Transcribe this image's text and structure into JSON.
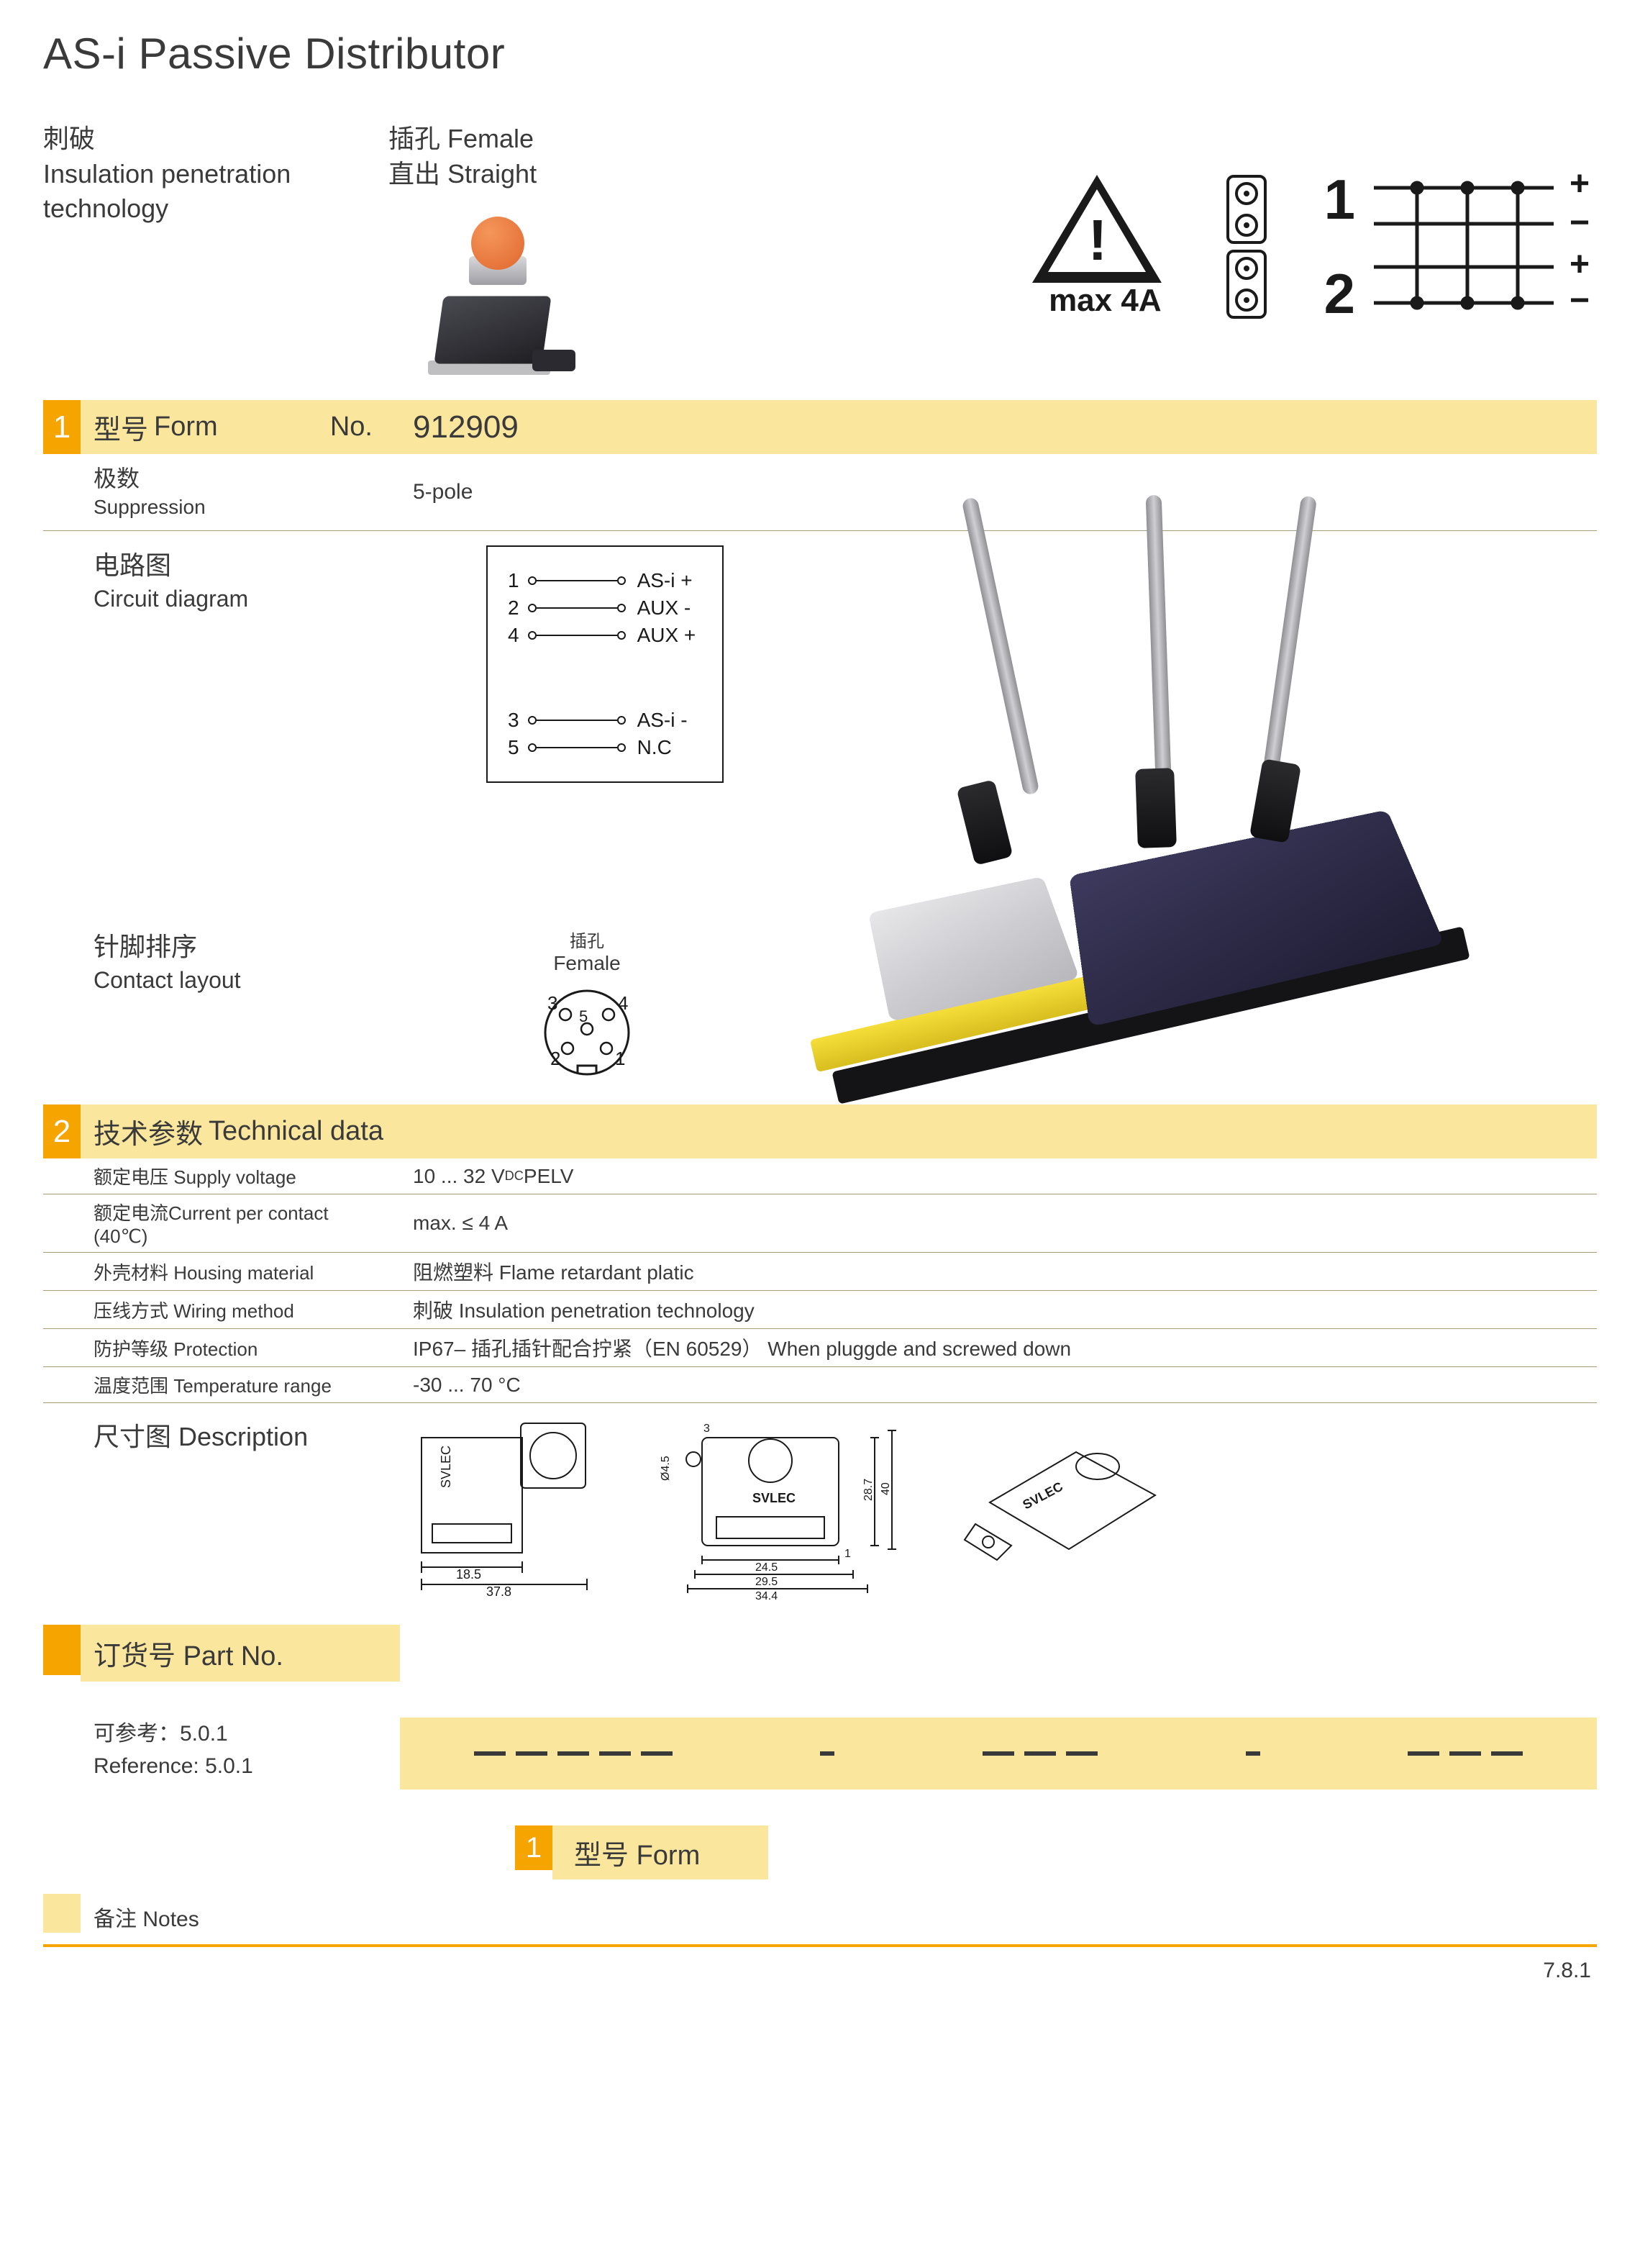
{
  "title": "AS-i Passive Distributor",
  "header": {
    "col1_cn": "刺破",
    "col1_en1": "Insulation penetration",
    "col1_en2": "technology",
    "col2_cn": "插孔 Female",
    "col2_en": "直出 Straight",
    "warning_label": "max 4A",
    "pin_nums": [
      "1",
      "2"
    ]
  },
  "section1": {
    "num": "1",
    "label_cn": "型号",
    "label_en": "Form",
    "no_label": "No.",
    "value": "912909"
  },
  "suppression": {
    "cn": "极数",
    "en": "Suppression",
    "val": "5-pole"
  },
  "circuit": {
    "cn": "电路图",
    "en": "Circuit diagram",
    "pins": [
      {
        "n": "1",
        "sig": "AS-i +"
      },
      {
        "n": "2",
        "sig": "AUX -"
      },
      {
        "n": "4",
        "sig": "AUX +"
      },
      {
        "n": "3",
        "sig": "AS-i -"
      },
      {
        "n": "5",
        "sig": "N.C"
      }
    ]
  },
  "contact": {
    "cn": "针脚排序",
    "en": "Contact layout",
    "t1": "插孔",
    "t2": "Female",
    "labels": [
      "3",
      "4",
      "5",
      "2",
      "1"
    ]
  },
  "section2": {
    "num": "2",
    "cn": "技术参数",
    "en": "Technical data"
  },
  "tech": [
    {
      "l": "额定电压 Supply voltage",
      "v_pre": "10 ... 32 V",
      "v_sub": "DC",
      "v_post": " PELV"
    },
    {
      "l": "额定电流Current per contact (40℃)",
      "v": "max. ≤ 4 A"
    },
    {
      "l": "外壳材料 Housing material",
      "v": "阻燃塑料  Flame retardant platic"
    },
    {
      "l": "压线方式 Wiring method",
      "v": "刺破  Insulation penetration technology"
    },
    {
      "l": "防护等级 Protection",
      "v": "IP67– 插孔插针配合拧紧（EN 60529） When pluggde and screwed down"
    },
    {
      "l": "温度范围 Temperature range",
      "v": "-30 ... 70 °C"
    }
  ],
  "desc": {
    "cn": "尺寸图",
    "en": "Description",
    "dims": {
      "d1": [
        "18.5",
        "37.8"
      ],
      "d2": [
        "3",
        "Ø4.5",
        "24.5",
        "29.5",
        "34.4",
        "1",
        "28.7",
        "40",
        "SVLEC"
      ],
      "brand": "SVLEC"
    }
  },
  "part": {
    "cn": "订货号",
    "en": "Part No.",
    "ref_cn": "可参考：5.0.1",
    "ref_en": "Reference: 5.0.1"
  },
  "formFooter": {
    "num": "1",
    "cn": "型号",
    "en": "Form"
  },
  "notes": {
    "cn": "备注",
    "en": "Notes"
  },
  "pageNum": "7.8.1",
  "colors": {
    "accent": "#f5a400",
    "tint": "#fbe69e",
    "rule": "#a89a7a",
    "text": "#3a3a3a",
    "black": "#1a1a1a"
  }
}
